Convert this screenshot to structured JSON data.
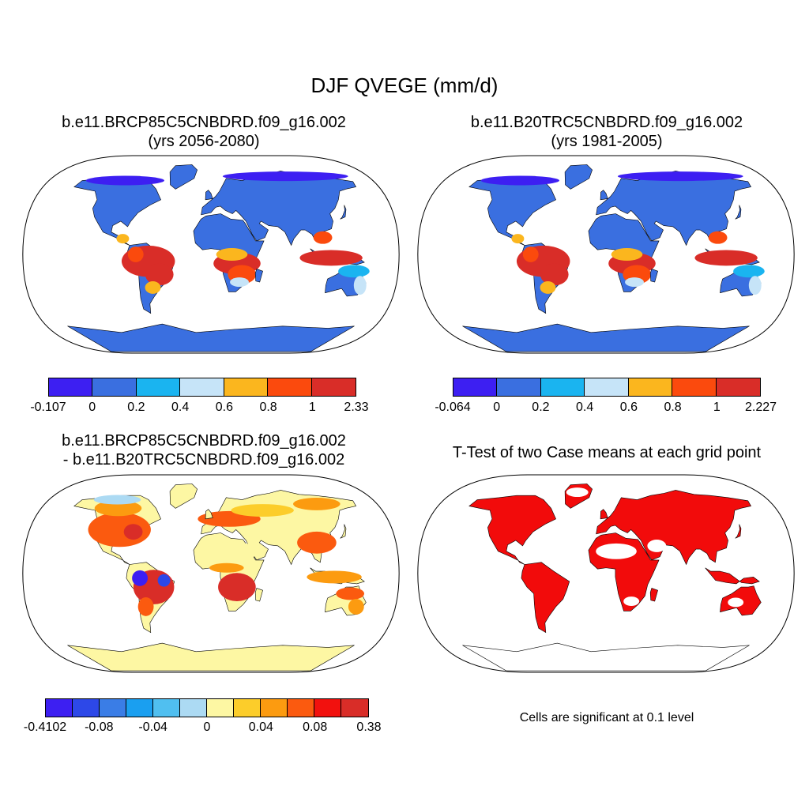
{
  "title": "DJF QVEGE (mm/d)",
  "panels": [
    {
      "id": "future",
      "title_line1": "b.e11.BRCP85C5CNBDRD.f09_g16.002",
      "title_line2": "(yrs 2056-2080)",
      "colorbar": {
        "colors": [
          "#3d1ff2",
          "#3a6fe0",
          "#1ab4f0",
          "#c6e4f8",
          "#fbb61e",
          "#fb4a0d",
          "#d92d28"
        ],
        "labels": [
          "-0.107",
          "0",
          "0.2",
          "0.4",
          "0.6",
          "0.8",
          "1",
          "2.33"
        ]
      }
    },
    {
      "id": "historical",
      "title_line1": "b.e11.B20TRC5CNBDRD.f09_g16.002",
      "title_line2": "(yrs 1981-2005)",
      "colorbar": {
        "colors": [
          "#3d1ff2",
          "#3a6fe0",
          "#1ab4f0",
          "#c6e4f8",
          "#fbb61e",
          "#fb4a0d",
          "#d92d28"
        ],
        "labels": [
          "-0.064",
          "0",
          "0.2",
          "0.4",
          "0.6",
          "0.8",
          "1",
          "2.227"
        ]
      }
    },
    {
      "id": "difference",
      "title_line1": "b.e11.BRCP85C5CNBDRD.f09_g16.002",
      "title_line2": "- b.e11.B20TRC5CNBDRD.f09_g16.002",
      "colorbar": {
        "colors": [
          "#3d1ff2",
          "#2d48e8",
          "#3a7de6",
          "#1a9ff0",
          "#50bff0",
          "#acdaf3",
          "#fdf7a3",
          "#fccd2a",
          "#fc9b10",
          "#fb5a0f",
          "#f2110e",
          "#d92d28"
        ],
        "labels": [
          "-0.4102",
          "-0.08",
          "-0.04",
          "0",
          "0.04",
          "0.08",
          "0.38"
        ]
      }
    },
    {
      "id": "ttest",
      "title_line1": "T-Test of two Case means at each grid point",
      "note": "Cells are significant at 0.1 level"
    }
  ]
}
